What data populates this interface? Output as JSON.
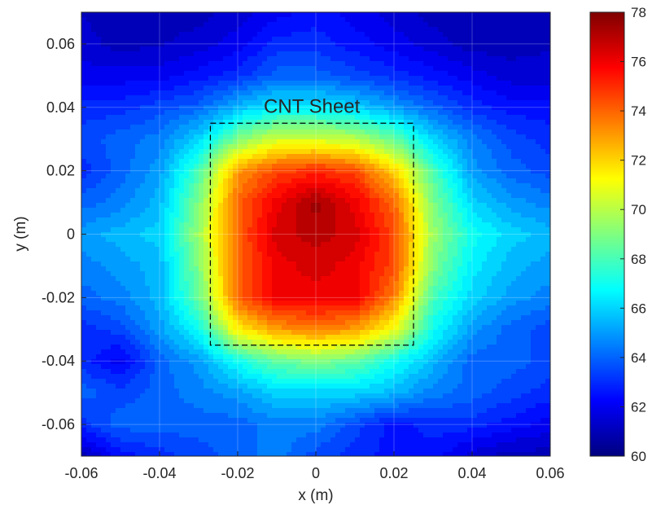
{
  "chart_data": {
    "type": "heatmap",
    "title": "",
    "annotation": "CNT Sheet",
    "xlabel": "x (m)",
    "ylabel": "y (m)",
    "xlim": [
      -0.06,
      0.06
    ],
    "ylim": [
      -0.07,
      0.07
    ],
    "x_ticks": [
      -0.06,
      -0.04,
      -0.02,
      0,
      0.02,
      0.04,
      0.06
    ],
    "x_tick_labels": [
      "-0.06",
      "-0.04",
      "-0.02",
      "0",
      "0.02",
      "0.04",
      "0.06"
    ],
    "y_ticks": [
      -0.06,
      -0.04,
      -0.02,
      0,
      0.02,
      0.04,
      0.06
    ],
    "y_tick_labels": [
      "-0.06",
      "-0.04",
      "-0.02",
      "0",
      "0.02",
      "0.04",
      "0.06"
    ],
    "colorbar": {
      "min": 60,
      "max": 78,
      "ticks": [
        60,
        62,
        64,
        66,
        68,
        70,
        72,
        74,
        76,
        78
      ],
      "tick_labels": [
        "60",
        "62",
        "64",
        "66",
        "68",
        "70",
        "72",
        "74",
        "76",
        "78"
      ],
      "colormap": "jet"
    },
    "sheet_outline": {
      "x": [
        -0.027,
        0.025
      ],
      "y": [
        -0.035,
        0.035
      ],
      "style": "dashed"
    },
    "grid": true,
    "x": [
      -0.06,
      -0.05,
      -0.04,
      -0.03,
      -0.02,
      -0.01,
      0,
      0.01,
      0.02,
      0.03,
      0.04,
      0.05,
      0.06
    ],
    "y": [
      0.07,
      0.06,
      0.05,
      0.04,
      0.03,
      0.02,
      0.01,
      0,
      -0.01,
      -0.02,
      -0.03,
      -0.04,
      -0.05,
      -0.06,
      -0.07
    ],
    "z": [
      [
        61.2,
        61.0,
        61.0,
        61.0,
        61.5,
        62.0,
        62.5,
        62.0,
        61.5,
        61.0,
        61.0,
        61.0,
        61.0
      ],
      [
        61.5,
        61.0,
        61.2,
        61.5,
        62.0,
        63.0,
        63.0,
        62.5,
        62.0,
        61.5,
        61.0,
        61.0,
        61.2
      ],
      [
        62.0,
        62.0,
        62.0,
        62.5,
        63.0,
        64.0,
        64.0,
        63.5,
        63.0,
        62.5,
        62.0,
        61.5,
        61.5
      ],
      [
        63.0,
        63.0,
        63.5,
        64.0,
        65.5,
        66.5,
        66.5,
        66.0,
        65.0,
        64.0,
        63.0,
        62.5,
        62.5
      ],
      [
        63.5,
        64.0,
        64.5,
        66.0,
        69.0,
        70.5,
        70.5,
        70.0,
        68.5,
        66.0,
        64.5,
        63.5,
        63.0
      ],
      [
        63.0,
        64.0,
        65.0,
        68.0,
        73.0,
        74.5,
        75.0,
        74.5,
        72.0,
        68.0,
        65.0,
        64.0,
        63.5
      ],
      [
        64.0,
        64.5,
        65.5,
        69.0,
        74.0,
        76.0,
        77.5,
        76.0,
        74.0,
        69.0,
        66.0,
        65.0,
        64.5
      ],
      [
        65.0,
        65.5,
        66.0,
        69.5,
        74.0,
        76.5,
        77.0,
        76.5,
        74.5,
        69.5,
        67.0,
        66.0,
        65.5
      ],
      [
        64.5,
        65.0,
        65.5,
        69.0,
        74.0,
        76.0,
        76.5,
        76.0,
        74.5,
        69.0,
        66.5,
        65.5,
        65.0
      ],
      [
        64.0,
        64.5,
        65.5,
        68.5,
        74.0,
        76.0,
        76.0,
        76.0,
        73.5,
        68.0,
        66.0,
        65.0,
        64.5
      ],
      [
        63.0,
        63.5,
        65.0,
        67.0,
        71.5,
        73.0,
        73.5,
        73.0,
        71.0,
        67.0,
        65.0,
        64.0,
        63.5
      ],
      [
        63.0,
        62.0,
        64.0,
        65.0,
        67.0,
        68.5,
        69.0,
        68.5,
        67.0,
        65.5,
        64.0,
        64.0,
        63.5
      ],
      [
        64.0,
        63.5,
        64.0,
        64.5,
        65.0,
        66.0,
        66.0,
        66.0,
        65.5,
        64.5,
        64.0,
        63.5,
        63.0
      ],
      [
        63.0,
        64.0,
        64.0,
        64.0,
        64.0,
        64.5,
        64.5,
        63.5,
        62.5,
        63.0,
        63.0,
        62.5,
        62.0
      ],
      [
        61.0,
        62.5,
        63.0,
        63.5,
        64.0,
        64.5,
        63.5,
        63.0,
        62.5,
        62.5,
        61.5,
        61.0,
        61.0
      ]
    ]
  }
}
